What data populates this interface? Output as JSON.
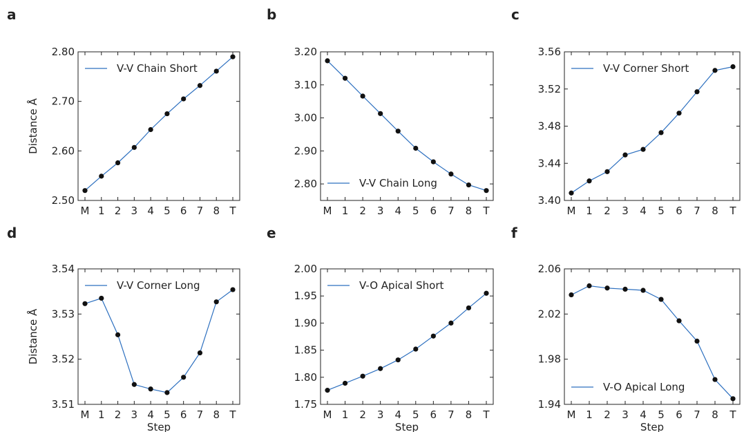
{
  "chart_data": [
    {
      "type": "line",
      "panel": "a",
      "categories": [
        "M",
        "1",
        "2",
        "3",
        "4",
        "5",
        "6",
        "7",
        "8",
        "T"
      ],
      "series": [
        {
          "name": "V-V Chain Short",
          "values": [
            2.52,
            2.549,
            2.576,
            2.607,
            2.643,
            2.675,
            2.705,
            2.732,
            2.761,
            2.79
          ]
        }
      ],
      "ylim": [
        2.5,
        2.8
      ],
      "yticks": [
        "2.50",
        "2.60",
        "2.70",
        "2.80"
      ],
      "xlabel": "",
      "ylabel": "Distance Å",
      "legend": "top-left",
      "line_color": "#2c6fbf",
      "marker_color": "#111111"
    },
    {
      "type": "line",
      "panel": "b",
      "categories": [
        "M",
        "1",
        "2",
        "3",
        "4",
        "5",
        "6",
        "7",
        "8",
        "T"
      ],
      "series": [
        {
          "name": "V-V Chain Long",
          "values": [
            3.173,
            3.12,
            3.066,
            3.013,
            2.96,
            2.908,
            2.867,
            2.83,
            2.797,
            2.78
          ]
        }
      ],
      "ylim": [
        2.75,
        3.2
      ],
      "yticks": [
        "2.80",
        "2.90",
        "3.00",
        "3.10",
        "3.20"
      ],
      "xlabel": "",
      "ylabel": "",
      "legend": "bottom-left",
      "line_color": "#2c6fbf",
      "marker_color": "#111111"
    },
    {
      "type": "line",
      "panel": "c",
      "categories": [
        "M",
        "1",
        "2",
        "3",
        "4",
        "5",
        "6",
        "7",
        "8",
        "T"
      ],
      "series": [
        {
          "name": "V-V Corner Short",
          "values": [
            3.408,
            3.421,
            3.431,
            3.449,
            3.455,
            3.473,
            3.494,
            3.517,
            3.54,
            3.544
          ]
        }
      ],
      "ylim": [
        3.4,
        3.56
      ],
      "yticks": [
        "3.40",
        "3.44",
        "3.48",
        "3.52",
        "3.56"
      ],
      "xlabel": "",
      "ylabel": "",
      "legend": "top-left",
      "line_color": "#2c6fbf",
      "marker_color": "#111111"
    },
    {
      "type": "line",
      "panel": "d",
      "categories": [
        "M",
        "1",
        "2",
        "3",
        "4",
        "5",
        "6",
        "7",
        "8",
        "T"
      ],
      "series": [
        {
          "name": "V-V Corner Long",
          "values": [
            3.5323,
            3.5335,
            3.5254,
            3.5144,
            3.5134,
            3.5126,
            3.516,
            3.5214,
            3.5327,
            3.5354
          ]
        }
      ],
      "ylim": [
        3.51,
        3.54
      ],
      "yticks": [
        "3.51",
        "3.52",
        "3.53",
        "3.54"
      ],
      "xlabel": "Step",
      "ylabel": "Distance Å",
      "legend": "top-left",
      "line_color": "#2c6fbf",
      "marker_color": "#111111"
    },
    {
      "type": "line",
      "panel": "e",
      "categories": [
        "M",
        "1",
        "2",
        "3",
        "4",
        "5",
        "6",
        "7",
        "8",
        "T"
      ],
      "series": [
        {
          "name": "V-O Apical Short",
          "values": [
            1.776,
            1.789,
            1.802,
            1.816,
            1.832,
            1.852,
            1.876,
            1.9,
            1.928,
            1.955
          ]
        }
      ],
      "ylim": [
        1.75,
        2.0
      ],
      "yticks": [
        "1.75",
        "1.80",
        "1.85",
        "1.90",
        "1.95",
        "2.00"
      ],
      "xlabel": "Step",
      "ylabel": "",
      "legend": "top-left",
      "line_color": "#2c6fbf",
      "marker_color": "#111111"
    },
    {
      "type": "line",
      "panel": "f",
      "categories": [
        "M",
        "1",
        "2",
        "3",
        "4",
        "5",
        "6",
        "7",
        "8",
        "T"
      ],
      "series": [
        {
          "name": "V-O Apical Long",
          "values": [
            2.037,
            2.045,
            2.043,
            2.042,
            2.041,
            2.033,
            2.014,
            1.996,
            1.962,
            1.945
          ]
        }
      ],
      "ylim": [
        1.94,
        2.06
      ],
      "yticks": [
        "1.94",
        "1.98",
        "2.02",
        "2.06"
      ],
      "xlabel": "Step",
      "ylabel": "",
      "legend": "bottom-left",
      "line_color": "#2c6fbf",
      "marker_color": "#111111"
    }
  ]
}
